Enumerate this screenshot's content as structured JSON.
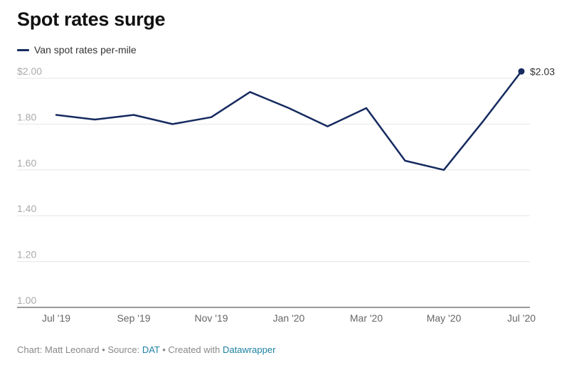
{
  "title": "Spot rates surge",
  "legend": {
    "label": "Van spot rates per-mile"
  },
  "colors": {
    "line": "#152a5f",
    "grid": "#e6e6e6",
    "axis": "#aaaaaa",
    "tick_y": "#aaaaaa",
    "tick_x": "#666666",
    "link": "#1d81a2"
  },
  "footer": {
    "prefix": "Chart: Matt Leonard • Source: ",
    "source": "DAT",
    "middle": " • Created with ",
    "tool": "Datawrapper"
  },
  "chart_data": {
    "type": "line",
    "title": "Spot rates surge",
    "xlabel": "",
    "ylabel": "",
    "x": [
      "2019-07",
      "2019-08",
      "2019-09",
      "2019-10",
      "2019-11",
      "2019-12",
      "2020-01",
      "2020-02",
      "2020-03",
      "2020-04",
      "2020-05",
      "2020-06",
      "2020-07"
    ],
    "x_ticks": [
      "Jul '19",
      "Sep '19",
      "Nov '19",
      "Jan '20",
      "Mar '20",
      "May '20",
      "Jul '20"
    ],
    "y_ticks": [
      "$2.00",
      "1.80",
      "1.60",
      "1.40",
      "1.20",
      "1.00"
    ],
    "ylim": [
      1.0,
      2.0
    ],
    "grid": true,
    "legend_position": "top-left",
    "series": [
      {
        "name": "Van spot rates per-mile",
        "values": [
          1.84,
          1.82,
          1.84,
          1.8,
          1.83,
          1.94,
          1.87,
          1.79,
          1.87,
          1.64,
          1.6,
          1.81,
          2.03
        ]
      }
    ],
    "annotations": [
      {
        "label": "$2.03"
      }
    ]
  }
}
